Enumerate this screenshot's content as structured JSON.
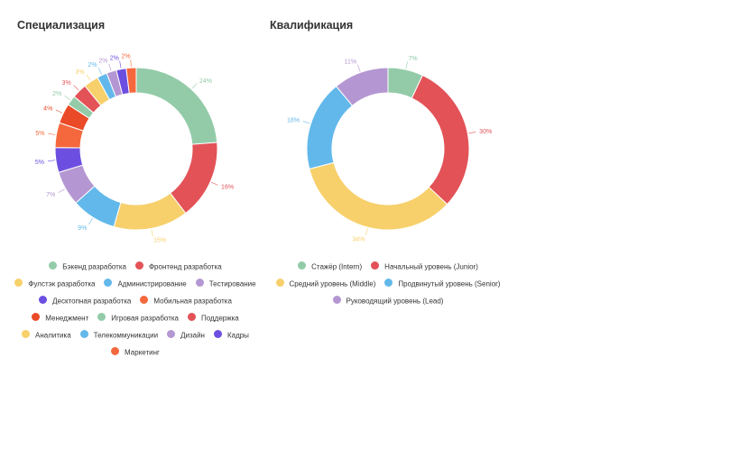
{
  "chart_data": [
    {
      "type": "pie",
      "title": "Специализация",
      "categories": [
        "Бэкенд разработка",
        "Фронтенд разработка",
        "Фулстэк разработка",
        "Администрирование",
        "Тестирование",
        "Десктопная разработка",
        "Мобильная разработка",
        "Менеджмент",
        "Игровая разработка",
        "Поддержка",
        "Аналитика",
        "Телекоммуникации",
        "Дизайн",
        "Кадры",
        "Маркетинг"
      ],
      "values": [
        24,
        16,
        15,
        9,
        7,
        5,
        5,
        4,
        2,
        3,
        3,
        2,
        2,
        2,
        2
      ],
      "labels": [
        "24%",
        "16%",
        "15%",
        "9%",
        "7%",
        "5%",
        "5%",
        "4%",
        "2%",
        "3%",
        "3%",
        "2%",
        "2%",
        "2%",
        "2%"
      ],
      "colors": [
        "#93cba8",
        "#e25257",
        "#f7d06b",
        "#62b8ea",
        "#b497d2",
        "#6c4fe0",
        "#f5683d",
        "#ea4a28",
        "#93cba8",
        "#e25257",
        "#f7d06b",
        "#62b8ea",
        "#b497d2",
        "#6c4fe0",
        "#f5683d"
      ],
      "legend_rows": [
        [
          0,
          1
        ],
        [
          2,
          3,
          4
        ],
        [
          5,
          6
        ],
        [
          7,
          8,
          9
        ],
        [
          10,
          11,
          12,
          13
        ],
        [
          14
        ]
      ],
      "legend_position": "bottom"
    },
    {
      "type": "pie",
      "title": "Квалификация",
      "categories": [
        "Стажёр (Intern)",
        "Начальный уровень (Junior)",
        "Средний уровень (Middle)",
        "Продвинутый уровень (Senior)",
        "Руководящий уровень (Lead)"
      ],
      "values": [
        7,
        30,
        34,
        18,
        11
      ],
      "labels": [
        "7%",
        "30%",
        "34%",
        "18%",
        "11%"
      ],
      "colors": [
        "#93cba8",
        "#e25257",
        "#f7d06b",
        "#62b8ea",
        "#b497d2"
      ],
      "legend_rows": [
        [
          0,
          1
        ],
        [
          2,
          3
        ],
        [
          4
        ]
      ],
      "legend_position": "bottom"
    }
  ]
}
